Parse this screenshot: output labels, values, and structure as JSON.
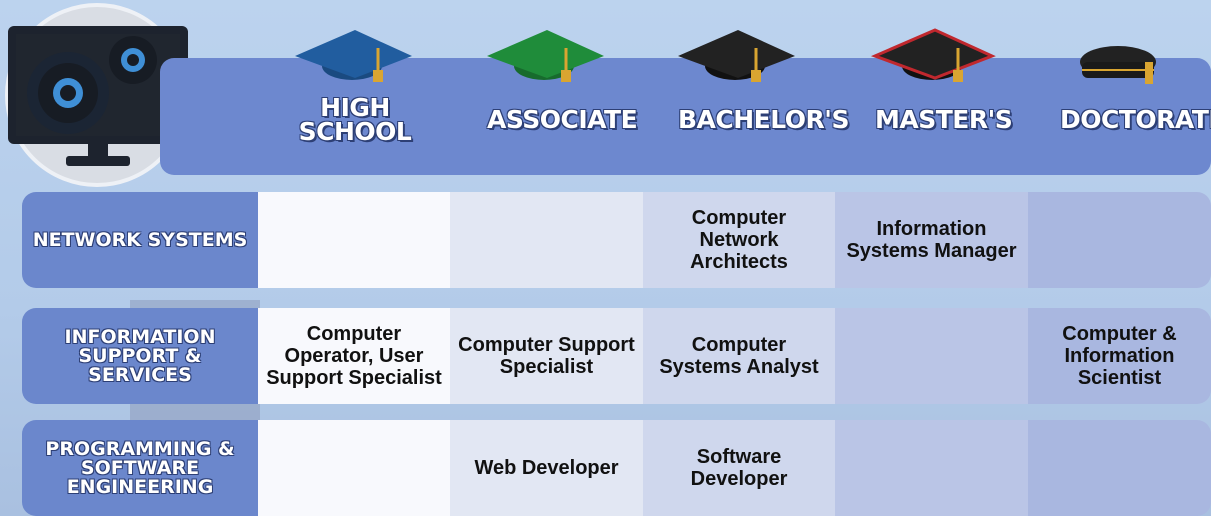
{
  "header": {
    "columns": [
      "HIGH SCHOOL",
      "ASSOCIATE",
      "BACHELOR'S",
      "MASTER'S",
      "DOCTORATE"
    ]
  },
  "rows": [
    {
      "label": "NETWORK SYSTEMS",
      "cells": [
        null,
        null,
        "Computer Network Architects",
        "Information Systems Manager",
        null
      ]
    },
    {
      "label": "INFORMATION SUPPORT & SERVICES",
      "cells": [
        "Computer Operator, User Support Specialist",
        "Computer Support Specialist",
        "Computer Systems Analyst",
        null,
        "Computer & Information Scientist"
      ]
    },
    {
      "label": "PROGRAMMING & SOFTWARE ENGINEERING",
      "cells": [
        null,
        "Web Developer",
        "Software Developer",
        null,
        null
      ]
    }
  ]
}
